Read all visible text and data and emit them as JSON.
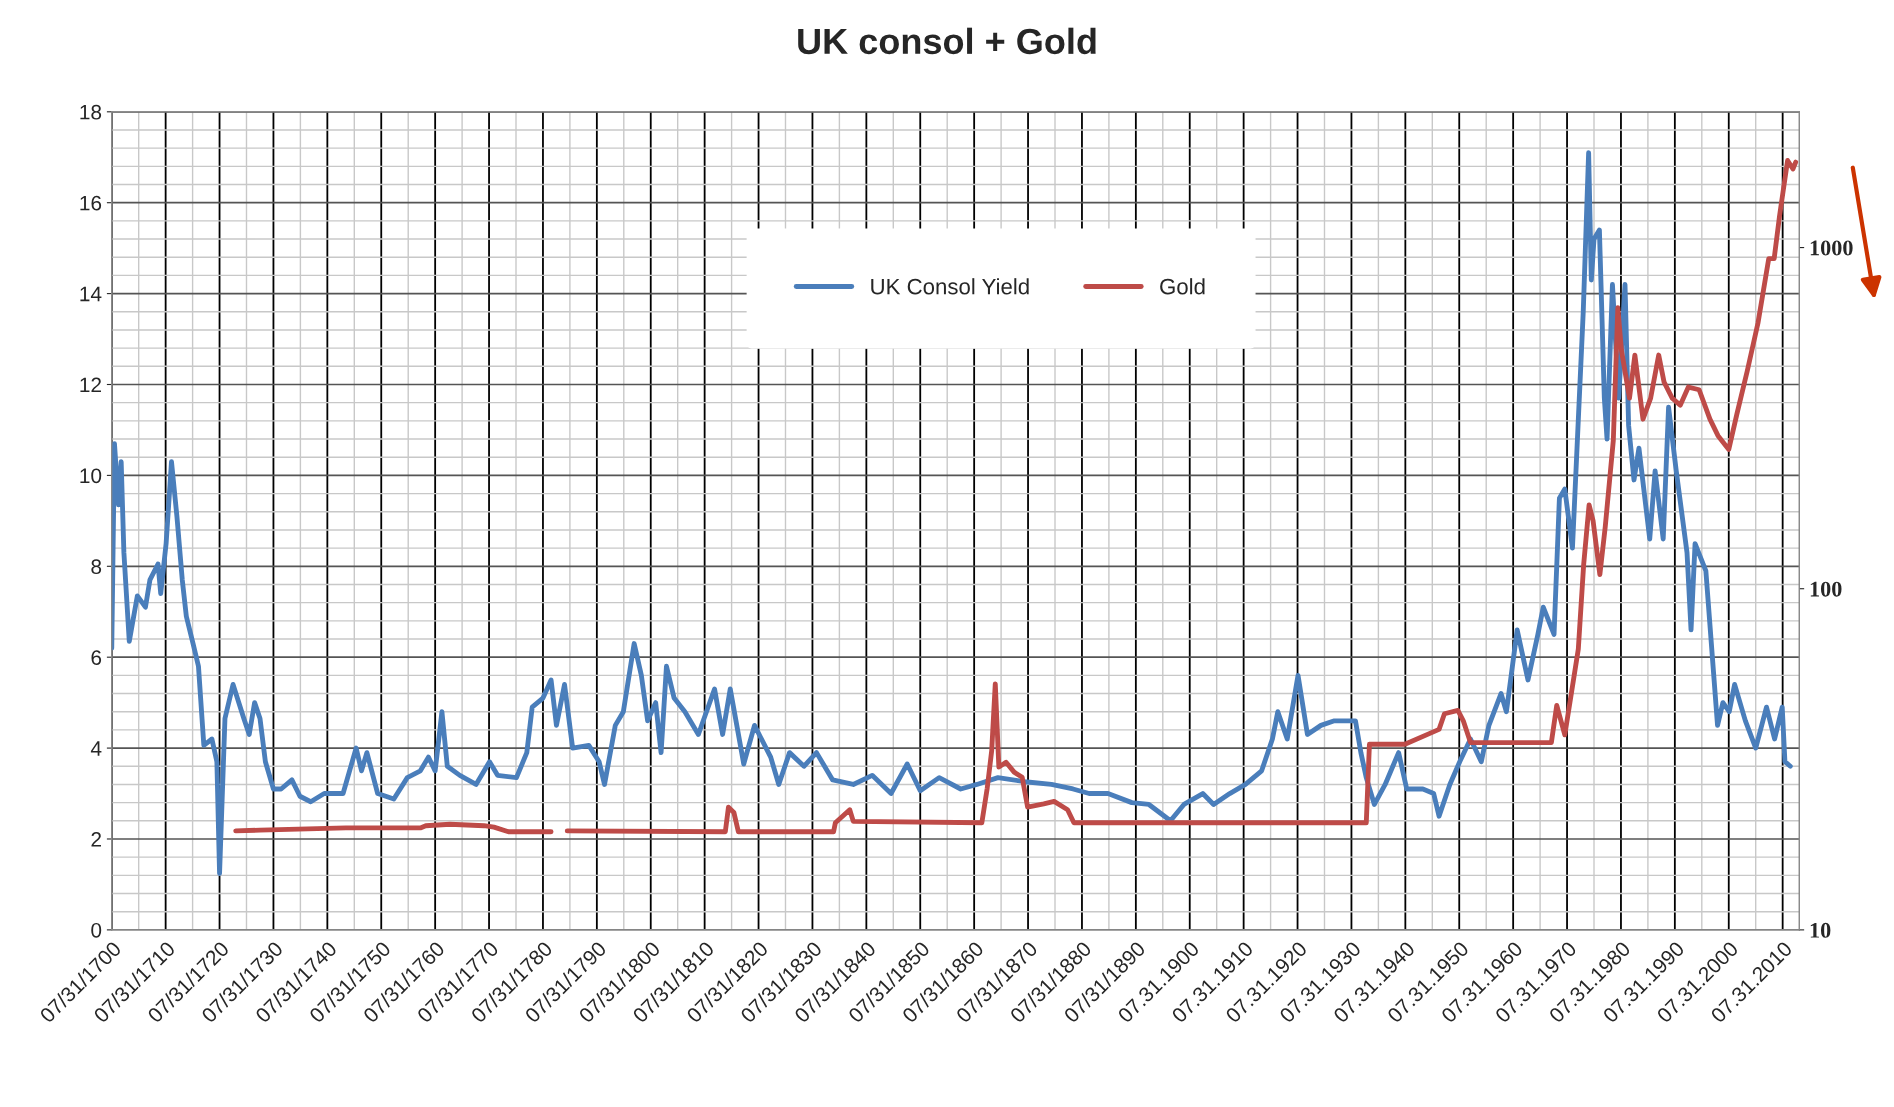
{
  "chart_data": {
    "type": "line",
    "title": "UK consol + Gold",
    "xlim": [
      "1700-07-31",
      "2013-09"
    ],
    "xticks": [
      {
        "value": "1700-07-31",
        "label": "07/31/1700"
      },
      {
        "value": "1710-07-31",
        "label": "07/31/1710"
      },
      {
        "value": "1720-07-31",
        "label": "07/31/1720"
      },
      {
        "value": "1730-07-31",
        "label": "07/31/1730"
      },
      {
        "value": "1740-07-31",
        "label": "07/31/1740"
      },
      {
        "value": "1750-07-31",
        "label": "07/31/1750"
      },
      {
        "value": "1760-07-31",
        "label": "07/31/1760"
      },
      {
        "value": "1770-07-31",
        "label": "07/31/1770"
      },
      {
        "value": "1780-07-31",
        "label": "07/31/1780"
      },
      {
        "value": "1790-07-31",
        "label": "07/31/1790"
      },
      {
        "value": "1800-07-31",
        "label": "07/31/1800"
      },
      {
        "value": "1810-07-31",
        "label": "07/31/1810"
      },
      {
        "value": "1820-07-31",
        "label": "07/31/1820"
      },
      {
        "value": "1830-07-31",
        "label": "07/31/1830"
      },
      {
        "value": "1840-07-31",
        "label": "07/31/1840"
      },
      {
        "value": "1850-07-31",
        "label": "07/31/1850"
      },
      {
        "value": "1860-07-31",
        "label": "07/31/1860"
      },
      {
        "value": "1870-07-31",
        "label": "07/31/1870"
      },
      {
        "value": "1880-07-31",
        "label": "07/31/1880"
      },
      {
        "value": "1890-07-31",
        "label": "07/31/1890"
      },
      {
        "value": "1900-07-31",
        "label": "07.31.1900"
      },
      {
        "value": "1910-07-31",
        "label": "07.31.1910"
      },
      {
        "value": "1920-07-31",
        "label": "07.31.1920"
      },
      {
        "value": "1930-07-31",
        "label": "07.31.1930"
      },
      {
        "value": "1940-07-31",
        "label": "07.31.1940"
      },
      {
        "value": "1950-07-31",
        "label": "07.31.1950"
      },
      {
        "value": "1960-07-31",
        "label": "07.31.1960"
      },
      {
        "value": "1970-07-31",
        "label": "07.31.1970"
      },
      {
        "value": "1980-07-31",
        "label": "07.31.1980"
      },
      {
        "value": "1990-07-31",
        "label": "07.31.1990"
      },
      {
        "value": "2000-07-31",
        "label": "07.31.2000"
      },
      {
        "value": "2010-07-31",
        "label": "07.31.2010"
      }
    ],
    "ylim": [
      0,
      18
    ],
    "yticks": [
      0,
      2,
      4,
      6,
      8,
      10,
      12,
      14,
      16,
      18
    ],
    "y2lim": [
      10,
      2500
    ],
    "y2ticks": [
      10,
      100,
      1000
    ],
    "log": "y2",
    "grid": true,
    "legend": "top",
    "marker": "none",
    "line_style": "solid",
    "series": [
      {
        "name": "UK Consol Yield",
        "color": "#4a7ebb",
        "x": [
          "1700-07-31",
          "1701-02",
          "1701-11",
          "1702-05",
          "1702-11",
          "1703-11",
          "1705-05",
          "1706-11",
          "1707-09",
          "1709-03",
          "1709-09",
          "1710-09",
          "1711-09",
          "1712-09",
          "1713-09",
          "1714-06",
          "1715-09",
          "1716-09",
          "1717-09",
          "1719-03",
          "1720-02",
          "1720-08",
          "1721-08",
          "1723-02",
          "1725-02",
          "1726-02",
          "1727-02",
          "1728-02",
          "1729-02",
          "1730-08",
          "1732-01",
          "1734-01",
          "1735-07",
          "1737-07",
          "1740-01",
          "1743-07",
          "1745-12",
          "1746-12",
          "1747-12",
          "1749-12",
          "1752-12",
          "1755-06",
          "1757-11",
          "1759-05",
          "1760-08",
          "1761-11",
          "1762-11",
          "1765-03",
          "1768-03",
          "1770-09",
          "1772-03",
          "1775-09",
          "1777-08",
          "1778-08",
          "1780-08",
          "1782-02",
          "1783-02",
          "1784-08",
          "1786-02",
          "1789-02",
          "1791-01",
          "1792-01",
          "1794-01",
          "1795-07",
          "1797-07",
          "1798-11",
          "1800-01",
          "1801-07",
          "1802-07",
          "1803-07",
          "1804-12",
          "1806-12",
          "1809-06",
          "1812-06",
          "1813-12",
          "1815-05",
          "1817-11",
          "1819-11",
          "1822-11",
          "1824-05",
          "1826-05",
          "1829-01",
          "1831-05",
          "1834-05",
          "1838-03",
          "1841-09",
          "1845-03",
          "1848-03",
          "1850-08",
          "1854-02",
          "1858-02",
          "1861-02",
          "1865-01",
          "1870-01",
          "1874-12",
          "1878-12",
          "1881-12",
          "1885-06",
          "1889-11",
          "1893-01",
          "1897-01",
          "1899-07",
          "1903-01",
          "1905-01",
          "1908-01",
          "1910-12",
          "1913-12",
          "1915-12",
          "1916-12",
          "1918-09",
          "1920-09",
          "1922-06",
          "1924-12",
          "1927-06",
          "1929-12",
          "1931-05",
          "1932-05",
          "1933-05",
          "1934-11",
          "1936-11",
          "1939-05",
          "1940-11",
          "1943-11",
          "1945-11",
          "1946-11",
          "1948-11",
          "1950-09",
          "1952-09",
          "1954-09",
          "1956-02",
          "1958-05",
          "1959-05",
          "1961-05",
          "1963-05",
          "1965-03",
          "1966-03",
          "1968-03",
          "1969-03",
          "1970-03",
          "1971-08",
          "1973-08",
          "1974-08",
          "1975-02",
          "1975-08",
          "1976-08",
          "1977-07",
          "1978-01",
          "1979-01",
          "1980-03",
          "1981-05",
          "1982-01",
          "1983-01",
          "1983-12",
          "1985-12",
          "1986-12",
          "1988-06",
          "1989-06",
          "1990-11",
          "1992-11",
          "1993-08",
          "1994-05",
          "1996-05",
          "1997-09",
          "1998-07",
          "1999-07",
          "2000-09",
          "2001-09",
          "2003-09",
          "2005-08",
          "2007-08",
          "2009-02",
          "2010-07",
          "2011-01",
          "2012-01"
        ],
        "values": [
          6.2,
          10.7,
          9.35,
          10.3,
          8.3,
          6.35,
          7.35,
          7.1,
          7.7,
          8.05,
          7.4,
          8.5,
          10.3,
          9.1,
          7.7,
          6.9,
          6.3,
          5.8,
          4.06,
          4.2,
          3.7,
          1.24,
          4.65,
          5.4,
          4.65,
          4.3,
          5.0,
          4.65,
          3.7,
          3.1,
          3.1,
          3.3,
          2.94,
          2.82,
          3.0,
          3.0,
          4.0,
          3.5,
          3.9,
          3.0,
          2.88,
          3.35,
          3.5,
          3.8,
          3.5,
          4.8,
          3.6,
          3.4,
          3.2,
          3.7,
          3.4,
          3.35,
          3.9,
          4.9,
          5.1,
          5.5,
          4.5,
          5.4,
          4.0,
          4.06,
          3.7,
          3.2,
          4.5,
          4.8,
          6.3,
          5.6,
          4.6,
          5.0,
          3.9,
          5.8,
          5.1,
          4.8,
          4.3,
          5.3,
          4.3,
          5.3,
          3.65,
          4.5,
          3.8,
          3.2,
          3.9,
          3.6,
          3.9,
          3.3,
          3.2,
          3.4,
          3.0,
          3.65,
          3.06,
          3.35,
          3.1,
          3.2,
          3.35,
          3.26,
          3.2,
          3.1,
          3.0,
          3.0,
          2.8,
          2.76,
          2.4,
          2.76,
          3.0,
          2.76,
          3.0,
          3.2,
          3.5,
          4.2,
          4.8,
          4.2,
          5.6,
          4.3,
          4.5,
          4.6,
          4.6,
          4.6,
          3.9,
          3.35,
          2.76,
          3.2,
          3.9,
          3.1,
          3.1,
          3.0,
          2.5,
          3.2,
          3.7,
          4.2,
          3.7,
          4.5,
          5.2,
          4.8,
          6.6,
          5.5,
          6.5,
          7.1,
          6.5,
          9.5,
          9.7,
          8.4,
          13.6,
          17.1,
          14.3,
          15.2,
          15.4,
          11.7,
          10.8,
          14.2,
          11.7,
          14.2,
          11.1,
          9.9,
          10.6,
          8.6,
          10.1,
          8.6,
          11.5,
          10.1,
          8.3,
          6.6,
          8.5,
          7.9,
          5.8,
          4.5,
          5.0,
          4.8,
          5.4,
          4.6,
          4.0,
          4.9,
          4.2,
          4.9,
          3.7,
          3.6
        ]
      },
      {
        "name": "Gold",
        "color": "#be4b48",
        "axis": "y2",
        "x": [
          "1723-08",
          "1728-02",
          "1744-01",
          "1757-11",
          "1758-11",
          "1763-05",
          "1769-09",
          "1771-07",
          "1774-03",
          "1782-02",
          "1783-07",
          "1785-02",
          "1814-06",
          "1815-01",
          "1816-01",
          "1816-11",
          "1834-07",
          "1834-11",
          "1837-07",
          "1838-03",
          "1862-01",
          "1863-01",
          "1863-11",
          "1864-07",
          "1865-03",
          "1866-07",
          "1868-01",
          "1869-07",
          "1870-07",
          "1873-07",
          "1875-06",
          "1877-12",
          "1879-02",
          "1933-05",
          "1933-12",
          "1940-07",
          "1946-11",
          "1947-11",
          "1950-05",
          "1951-05",
          "1952-09",
          "1967-09",
          "1968-09",
          "1970-03",
          "1971-08",
          "1972-09",
          "1973-09",
          "1974-09",
          "1975-06",
          "1976-09",
          "1977-09",
          "1979-03",
          "1980-01",
          "1980-09",
          "1982-03",
          "1983-03",
          "1984-09",
          "1986-02",
          "1987-08",
          "1988-08",
          "1990-02",
          "1991-08",
          "1993-02",
          "1995-02",
          "1997-02",
          "1998-08",
          "2000-08",
          "2002-02",
          "2004-01",
          "2006-01",
          "2008-01",
          "2009-01",
          "2010-01",
          "2011-07",
          "2012-07",
          "2013-01"
        ],
        "values": [
          19.5,
          19.6,
          19.9,
          19.9,
          20.2,
          20.4,
          20.2,
          20.0,
          19.4,
          19.4,
          null,
          19.5,
          19.4,
          22.9,
          22.1,
          19.4,
          19.4,
          20.6,
          22.5,
          20.8,
          20.6,
          26,
          33.5,
          52.6,
          30,
          31,
          29,
          28,
          22.9,
          23.4,
          23.8,
          22.5,
          20.6,
          20.6,
          35,
          35,
          38.7,
          43,
          44,
          41,
          35.4,
          35.4,
          45.5,
          37.3,
          51.7,
          66.5,
          118,
          176,
          158,
          110,
          152,
          272,
          666,
          500,
          362,
          484,
          314,
          362,
          484,
          403,
          362,
          345,
          390,
          383,
          314,
          281,
          256,
          325,
          434,
          601,
          928,
          928,
          1238,
          1800,
          1700,
          1780
        ]
      }
    ]
  }
}
